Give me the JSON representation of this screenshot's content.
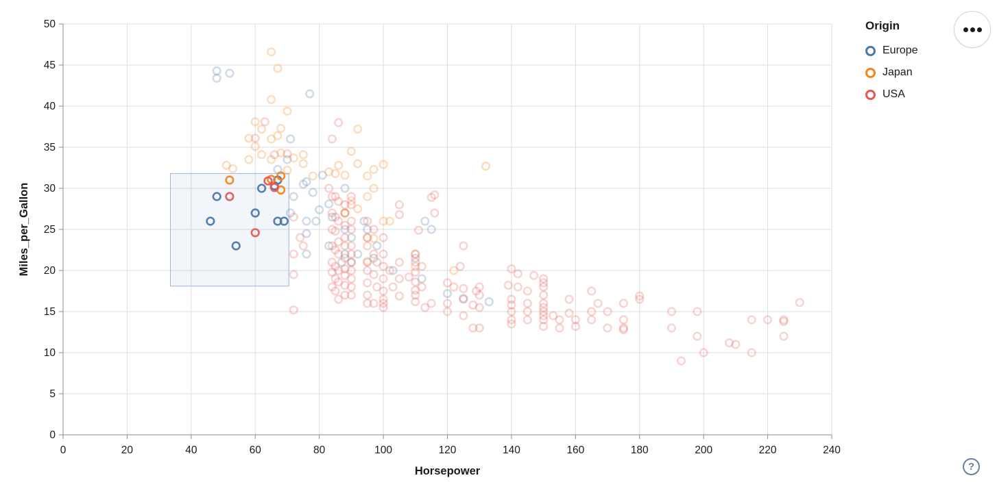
{
  "legend": {
    "title": "Origin",
    "items": [
      {
        "label": "Europe",
        "color": "#4c78a8"
      },
      {
        "label": "Japan",
        "color": "#f58518"
      },
      {
        "label": "USA",
        "color": "#e45756"
      }
    ]
  },
  "toolbar": {
    "menu_tooltip": "",
    "help_label": "?"
  },
  "chart_data": {
    "type": "scatter",
    "title": "",
    "xlabel": "Horsepower",
    "ylabel": "Miles_per_Gallon",
    "xlim": [
      0,
      240
    ],
    "ylim": [
      0,
      50
    ],
    "x_ticks": [
      0,
      20,
      40,
      60,
      80,
      100,
      120,
      140,
      160,
      180,
      200,
      220,
      240
    ],
    "y_ticks": [
      0,
      5,
      10,
      15,
      20,
      25,
      30,
      35,
      40,
      45,
      50
    ],
    "grid": true,
    "legend_position": "top-right",
    "marker": {
      "shape": "ring",
      "radius": 5.3,
      "stroke_width": 2.6,
      "selected_opacity": 0.95,
      "unselected_opacity": 0.26
    },
    "brush": {
      "hp": [
        33.5,
        70.5
      ],
      "mpg": [
        18.1,
        31.8
      ],
      "fill": "#4c78a8",
      "fill_opacity": 0.07,
      "stroke": "#9db4d6"
    },
    "axis_colors": {
      "grid": "#dddddd",
      "domain": "#888888",
      "label": "#1a1a1a"
    },
    "series": [
      {
        "name": "Europe",
        "color": "#4c78a8",
        "selected": [
          [
            46,
            26
          ],
          [
            48,
            29
          ],
          [
            54,
            23
          ],
          [
            60,
            27
          ],
          [
            62,
            30
          ],
          [
            66,
            30.3
          ],
          [
            67,
            31
          ],
          [
            67,
            26
          ],
          [
            69,
            26
          ]
        ],
        "points": [
          [
            48,
            43.4
          ],
          [
            48,
            44.3
          ],
          [
            52,
            44
          ],
          [
            77,
            41.5
          ],
          [
            71,
            36
          ],
          [
            70,
            33.5
          ],
          [
            67,
            32.3
          ],
          [
            81,
            31.6
          ],
          [
            75,
            30.5
          ],
          [
            88,
            30
          ],
          [
            76,
            30.8
          ],
          [
            78,
            29.5
          ],
          [
            83,
            28.1
          ],
          [
            80,
            27.4
          ],
          [
            72,
            29
          ],
          [
            88,
            25
          ],
          [
            90,
            24
          ],
          [
            95,
            25
          ],
          [
            113,
            26
          ],
          [
            115,
            25
          ],
          [
            94,
            26
          ],
          [
            110,
            21.5
          ],
          [
            103,
            20
          ],
          [
            98,
            23
          ],
          [
            88,
            22
          ],
          [
            90,
            21
          ],
          [
            125,
            16.6
          ],
          [
            133,
            16.2
          ],
          [
            112,
            19
          ],
          [
            120,
            17.2
          ],
          [
            76,
            26
          ],
          [
            79,
            26
          ],
          [
            84,
            26.5
          ],
          [
            71,
            27
          ],
          [
            76,
            24.5
          ],
          [
            83,
            23
          ],
          [
            97,
            21.5
          ],
          [
            76,
            22
          ],
          [
            87,
            21
          ],
          [
            92,
            22
          ]
        ]
      },
      {
        "name": "Japan",
        "color": "#f58518",
        "selected": [
          [
            52,
            31
          ],
          [
            65,
            31.1
          ],
          [
            68,
            31.5
          ],
          [
            68,
            29.8
          ]
        ],
        "points": [
          [
            65,
            46.6
          ],
          [
            67,
            44.6
          ],
          [
            65,
            40.8
          ],
          [
            70,
            39.4
          ],
          [
            60,
            38.1
          ],
          [
            62,
            37.2
          ],
          [
            68,
            37.3
          ],
          [
            58,
            36.1
          ],
          [
            65,
            36
          ],
          [
            67,
            36.4
          ],
          [
            60,
            35.1
          ],
          [
            62,
            34.1
          ],
          [
            68,
            34.3
          ],
          [
            65,
            33.5
          ],
          [
            75,
            34.1
          ],
          [
            72,
            33.7
          ],
          [
            92,
            37.2
          ],
          [
            75,
            33
          ],
          [
            70,
            32.2
          ],
          [
            97,
            32.3
          ],
          [
            100,
            32.9
          ],
          [
            92,
            33
          ],
          [
            88,
            31.6
          ],
          [
            95,
            31.5
          ],
          [
            85,
            31.8
          ],
          [
            88,
            27
          ],
          [
            88,
            27
          ],
          [
            92,
            27.5
          ],
          [
            97,
            30
          ],
          [
            95,
            29
          ],
          [
            90,
            28.5
          ],
          [
            102,
            26
          ],
          [
            95,
            24
          ],
          [
            100,
            26
          ],
          [
            110,
            22
          ],
          [
            122,
            20
          ],
          [
            132,
            32.7
          ],
          [
            110,
            20.5
          ],
          [
            95,
            21.1
          ],
          [
            97,
            23.9
          ],
          [
            51,
            32.8
          ],
          [
            53,
            32.4
          ],
          [
            58,
            33.5
          ],
          [
            78,
            31.5
          ],
          [
            83,
            32
          ],
          [
            86,
            32.8
          ],
          [
            90,
            34.5
          ]
        ]
      },
      {
        "name": "USA",
        "color": "#e45756",
        "selected": [
          [
            52,
            29
          ],
          [
            60,
            24.6
          ],
          [
            64,
            30.9
          ],
          [
            66,
            30.1
          ]
        ],
        "points": [
          [
            63,
            38.1
          ],
          [
            60,
            36.1
          ],
          [
            66,
            34.1
          ],
          [
            70,
            34.2
          ],
          [
            72,
            26.5
          ],
          [
            74,
            24
          ],
          [
            72,
            22
          ],
          [
            75,
            23
          ],
          [
            72,
            19.5
          ],
          [
            72,
            15.2
          ],
          [
            86,
            38
          ],
          [
            84,
            36
          ],
          [
            83,
            30
          ],
          [
            84,
            29
          ],
          [
            85,
            29
          ],
          [
            86,
            28.4
          ],
          [
            88,
            28
          ],
          [
            84,
            27
          ],
          [
            88,
            27
          ],
          [
            85,
            26.5
          ],
          [
            86,
            26
          ],
          [
            88,
            25.5
          ],
          [
            84,
            25
          ],
          [
            85,
            24.8
          ],
          [
            88,
            24
          ],
          [
            86,
            23.5
          ],
          [
            84,
            23
          ],
          [
            88,
            23
          ],
          [
            85,
            22.5
          ],
          [
            86,
            22
          ],
          [
            88,
            21.5
          ],
          [
            84,
            21
          ],
          [
            85,
            20.5
          ],
          [
            88,
            20.2
          ],
          [
            86,
            20
          ],
          [
            84,
            19.8
          ],
          [
            88,
            19.4
          ],
          [
            85,
            19
          ],
          [
            86,
            18.6
          ],
          [
            88,
            18.2
          ],
          [
            84,
            18
          ],
          [
            85,
            17.5
          ],
          [
            88,
            17
          ],
          [
            86,
            16.5
          ],
          [
            90,
            29
          ],
          [
            90,
            28
          ],
          [
            90,
            26
          ],
          [
            90,
            25
          ],
          [
            90,
            23
          ],
          [
            90,
            22
          ],
          [
            90,
            21
          ],
          [
            90,
            20
          ],
          [
            90,
            19
          ],
          [
            90,
            18
          ],
          [
            90,
            17
          ],
          [
            95,
            26
          ],
          [
            97,
            25
          ],
          [
            95,
            24
          ],
          [
            100,
            24
          ],
          [
            95,
            23
          ],
          [
            97,
            22
          ],
          [
            100,
            22
          ],
          [
            95,
            21
          ],
          [
            98,
            21
          ],
          [
            100,
            20.5
          ],
          [
            95,
            20
          ],
          [
            97,
            19.5
          ],
          [
            100,
            19
          ],
          [
            95,
            18.5
          ],
          [
            98,
            18
          ],
          [
            100,
            17.5
          ],
          [
            95,
            17
          ],
          [
            100,
            16.5
          ],
          [
            97,
            16
          ],
          [
            100,
            16
          ],
          [
            95,
            16
          ],
          [
            102,
            20
          ],
          [
            105,
            21
          ],
          [
            105,
            19
          ],
          [
            103,
            18
          ],
          [
            105,
            16.9
          ],
          [
            100,
            15.5
          ],
          [
            115,
            28.9
          ],
          [
            105,
            28
          ],
          [
            105,
            26.8
          ],
          [
            116,
            29.2
          ],
          [
            116,
            27
          ],
          [
            111,
            24.9
          ],
          [
            110,
            22
          ],
          [
            110,
            21
          ],
          [
            112,
            20.5
          ],
          [
            110,
            19.8
          ],
          [
            108,
            19.2
          ],
          [
            110,
            18.6
          ],
          [
            112,
            18
          ],
          [
            110,
            17.6
          ],
          [
            110,
            17
          ],
          [
            110,
            16.2
          ],
          [
            115,
            16
          ],
          [
            113,
            15.5
          ],
          [
            120,
            18.5
          ],
          [
            122,
            18
          ],
          [
            125,
            17.8
          ],
          [
            129,
            17.5
          ],
          [
            130,
            17
          ],
          [
            125,
            16.5
          ],
          [
            120,
            16
          ],
          [
            128,
            15.8
          ],
          [
            130,
            15.5
          ],
          [
            120,
            15
          ],
          [
            125,
            14.5
          ],
          [
            128,
            13
          ],
          [
            130,
            13
          ],
          [
            125,
            23
          ],
          [
            124,
            20.5
          ],
          [
            130,
            18
          ],
          [
            140,
            20.2
          ],
          [
            142,
            19.6
          ],
          [
            147,
            19.4
          ],
          [
            150,
            19
          ],
          [
            139,
            18.2
          ],
          [
            142,
            18
          ],
          [
            145,
            17.5
          ],
          [
            150,
            18.5
          ],
          [
            150,
            18
          ],
          [
            150,
            17
          ],
          [
            150,
            16
          ],
          [
            150,
            15.5
          ],
          [
            150,
            15
          ],
          [
            150,
            14.5
          ],
          [
            150,
            14
          ],
          [
            150,
            13.2
          ],
          [
            145,
            16
          ],
          [
            145,
            15
          ],
          [
            145,
            14
          ],
          [
            140,
            16.5
          ],
          [
            140,
            15.8
          ],
          [
            140,
            15
          ],
          [
            140,
            14
          ],
          [
            140,
            13.5
          ],
          [
            153,
            14.5
          ],
          [
            155,
            14
          ],
          [
            158,
            14.8
          ],
          [
            155,
            13
          ],
          [
            160,
            14
          ],
          [
            158,
            16.5
          ],
          [
            165,
            17.5
          ],
          [
            165,
            15
          ],
          [
            165,
            14
          ],
          [
            167,
            16
          ],
          [
            170,
            15
          ],
          [
            170,
            13
          ],
          [
            175,
            16
          ],
          [
            175,
            14
          ],
          [
            175,
            13
          ],
          [
            175,
            12.8
          ],
          [
            180,
            16.5
          ],
          [
            180,
            16.9
          ],
          [
            190,
            15
          ],
          [
            190,
            13
          ],
          [
            193,
            9
          ],
          [
            198,
            15
          ],
          [
            198,
            12
          ],
          [
            200,
            10
          ],
          [
            208,
            11.2
          ],
          [
            210,
            11
          ],
          [
            215,
            10
          ],
          [
            215,
            14
          ],
          [
            220,
            14
          ],
          [
            225,
            14
          ],
          [
            225,
            13.8
          ],
          [
            225,
            12
          ],
          [
            230,
            16.1
          ],
          [
            160,
            13.2
          ]
        ]
      }
    ]
  }
}
